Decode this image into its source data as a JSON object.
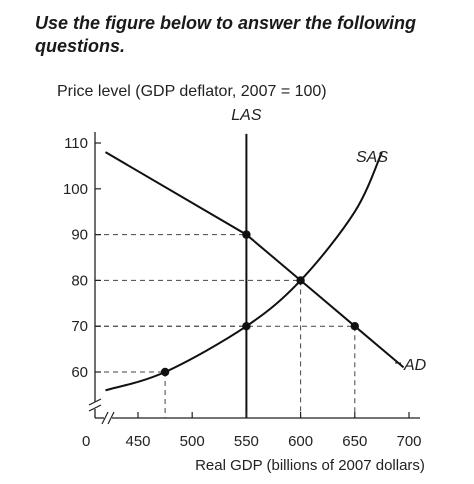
{
  "question": "Use the figure below to answer the following questions.",
  "chart_data": {
    "type": "line",
    "ylabel": "Price level (GDP deflator, 2007 = 100)",
    "xlabel": "Real GDP (billions of 2007 dollars)",
    "x_ticks": [
      450,
      500,
      550,
      600,
      650,
      700
    ],
    "y_ticks": [
      60,
      70,
      80,
      90,
      100,
      110
    ],
    "origin_label": "0",
    "xlim": [
      400,
      700
    ],
    "ylim": [
      50,
      110
    ],
    "axis_breaks": true,
    "grid": false,
    "series": [
      {
        "name": "LAS",
        "x": [
          550,
          550
        ],
        "y": [
          112,
          50
        ]
      },
      {
        "name": "SAS",
        "x": [
          420,
          475,
          550,
          600,
          650,
          675
        ],
        "y": [
          56,
          60,
          70,
          80,
          95,
          108
        ]
      },
      {
        "name": "AD",
        "x": [
          420,
          550,
          600,
          650,
          695
        ],
        "y": [
          108,
          90,
          80,
          70,
          61
        ]
      }
    ],
    "points": [
      {
        "x": 475,
        "y": 60
      },
      {
        "x": 550,
        "y": 70
      },
      {
        "x": 550,
        "y": 90
      },
      {
        "x": 600,
        "y": 80
      },
      {
        "x": 650,
        "y": 70
      }
    ]
  }
}
